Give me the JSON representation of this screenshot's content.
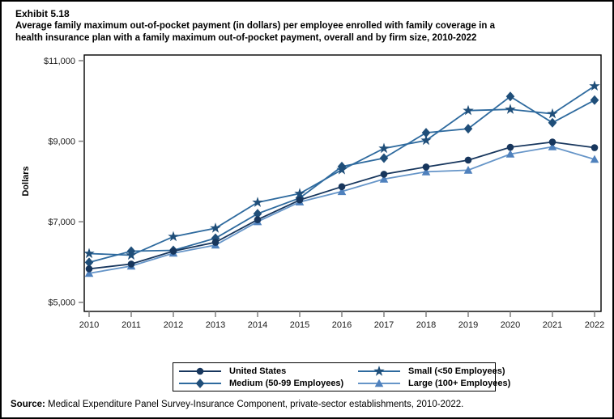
{
  "figure": {
    "exhibit_label": "Exhibit 5.18",
    "title_line1": "Average family maximum out-of-pocket payment (in dollars) per employee enrolled with family coverage in a",
    "title_line2": "health insurance plan with a family maximum out-of-pocket payment, overall and by firm size, 2010-2022",
    "source_label": "Source:",
    "source_text": " Medical Expenditure Panel Survey-Insurance Component, private-sector establishments, 2010-2022."
  },
  "chart_data": {
    "type": "line",
    "title": "Average family maximum out-of-pocket payment (in dollars) per employee enrolled with family coverage in a health insurance plan with a family maximum out-of-pocket payment, overall and by firm size, 2010-2022",
    "xlabel": "",
    "ylabel": "Dollars",
    "ylim": [
      5000,
      11000
    ],
    "yticks": [
      11000,
      9000,
      7000,
      5000
    ],
    "ytick_labels": [
      "$11,000",
      "$9,000",
      "$7,000",
      "$5,000"
    ],
    "grid": false,
    "legend_position": "bottom",
    "x": [
      2010,
      2011,
      2012,
      2013,
      2014,
      2015,
      2016,
      2017,
      2018,
      2019,
      2020,
      2021,
      2022
    ],
    "series": [
      {
        "name": "United States",
        "marker": "circle",
        "marker_color": "#17365d",
        "line_color": "#17365d",
        "values": [
          5830,
          5950,
          6270,
          6490,
          7050,
          7540,
          7870,
          8180,
          8360,
          8530,
          8850,
          8980,
          8840
        ]
      },
      {
        "name": "Medium (50-99 Employees)",
        "marker": "diamond",
        "marker_color": "#1f4e79",
        "line_color": "#2e6a9e",
        "values": [
          5990,
          6270,
          6290,
          6590,
          7200,
          7590,
          8370,
          8580,
          9210,
          9310,
          10110,
          9460,
          10020
        ]
      },
      {
        "name": "Small (<50 Employees)",
        "marker": "star",
        "marker_color": "#1f4e79",
        "line_color": "#2e6a9e",
        "values": [
          6210,
          6170,
          6630,
          6840,
          7480,
          7700,
          8290,
          8820,
          9020,
          9760,
          9790,
          9680,
          10370
        ]
      },
      {
        "name": "Large (100+ Employees)",
        "marker": "triangle",
        "marker_color": "#4f81bd",
        "line_color": "#6695c8",
        "values": [
          5720,
          5900,
          6220,
          6420,
          7000,
          7490,
          7750,
          8060,
          8240,
          8280,
          8680,
          8860,
          8550
        ]
      }
    ]
  }
}
